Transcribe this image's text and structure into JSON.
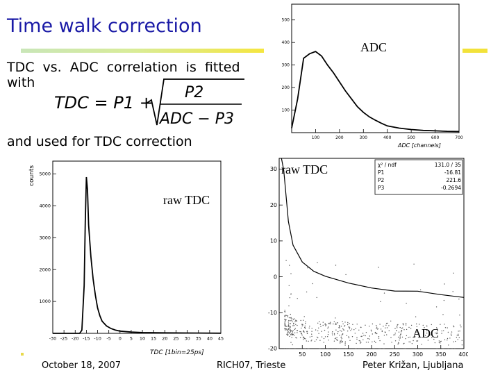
{
  "slide": {
    "title": "Time walk correction",
    "line1": "TDC vs. ADC correlation is fitted",
    "line2": "with",
    "formula": {
      "lhs": "TDC = P1 +",
      "numerator": "P2",
      "denominator": "ADC − P3"
    },
    "used_text": "and used for TDC correction"
  },
  "footer": {
    "date": "October 18, 2007",
    "event": "RICH07, Trieste",
    "author": "Peter Križan, Ljubljana"
  },
  "plot_labels": {
    "adc_top": "ADC",
    "raw_tdc_left": "raw TDC",
    "raw_tdc_right": "raw TDC",
    "adc_bottom": "ADC"
  },
  "fit_box": {
    "rows": [
      {
        "name": "χ² / ndf",
        "value": "131.0  /  35"
      },
      {
        "name": "P1",
        "value": "-16.81"
      },
      {
        "name": "P2",
        "value": "221.6"
      },
      {
        "name": "P3",
        "value": "-0.2694"
      }
    ]
  },
  "colors": {
    "title": "#1a1aa6",
    "rule_start": "#c9e6b8",
    "rule_end": "#f5e640"
  },
  "chart_data": [
    {
      "type": "line",
      "xlabel": "ADC [channels]",
      "ylabel": "",
      "xlim": [
        0,
        700
      ],
      "ylim": [
        0,
        570
      ],
      "x_ticks": [
        "100",
        "200",
        "300",
        "400",
        "500",
        "600",
        "700"
      ],
      "y_ticks": [
        "100",
        "200",
        "300",
        "400",
        "500"
      ],
      "x": [
        0,
        25,
        50,
        75,
        100,
        125,
        150,
        175,
        200,
        225,
        250,
        275,
        300,
        325,
        350,
        375,
        400,
        450,
        500,
        550,
        600,
        650,
        700
      ],
      "values": [
        20,
        150,
        330,
        350,
        360,
        340,
        300,
        265,
        225,
        185,
        150,
        115,
        90,
        70,
        55,
        42,
        30,
        20,
        14,
        10,
        8,
        6,
        5
      ]
    },
    {
      "type": "line",
      "xlabel": "TDC [1bin=25ps]",
      "ylabel": "counts",
      "xlim": [
        -30,
        45
      ],
      "ylim": [
        0,
        5400
      ],
      "x_ticks": [
        "-30",
        "-25",
        "-20",
        "-15",
        "-10",
        "-5",
        "0",
        "5",
        "10",
        "15",
        "20",
        "25",
        "30",
        "35",
        "40",
        "45"
      ],
      "y_ticks": [
        "1000",
        "2000",
        "3000",
        "4000",
        "5000"
      ],
      "x": [
        -30,
        -18,
        -17,
        -16,
        -15.5,
        -15,
        -14.5,
        -14,
        -13,
        -12,
        -11,
        -10,
        -9,
        -8,
        -6,
        -4,
        -2,
        0,
        5,
        10,
        20,
        30,
        45
      ],
      "values": [
        0,
        0,
        100,
        1500,
        3500,
        4900,
        4500,
        3400,
        2400,
        1700,
        1200,
        800,
        550,
        380,
        230,
        150,
        100,
        70,
        40,
        25,
        15,
        10,
        5
      ]
    },
    {
      "type": "scatter",
      "xlabel": "",
      "ylabel": "",
      "xlim": [
        0,
        400
      ],
      "ylim": [
        -20,
        33
      ],
      "x_ticks": [
        "50",
        "100",
        "150",
        "200",
        "250",
        "300",
        "350",
        "400"
      ],
      "y_ticks": [
        "-20",
        "-10",
        "0",
        "10",
        "20",
        "30"
      ],
      "series": [
        {
          "type": "line",
          "x": [
            5,
            10,
            20,
            30,
            50,
            75,
            100,
            150,
            200,
            250,
            300,
            350,
            400
          ],
          "values": [
            49.9,
            29.7,
            15.4,
            8.8,
            4.13,
            1.53,
            0.16,
            -1.74,
            -3.11,
            -3.97,
            -4.01,
            -4.97,
            -5.74
          ]
        }
      ]
    }
  ]
}
